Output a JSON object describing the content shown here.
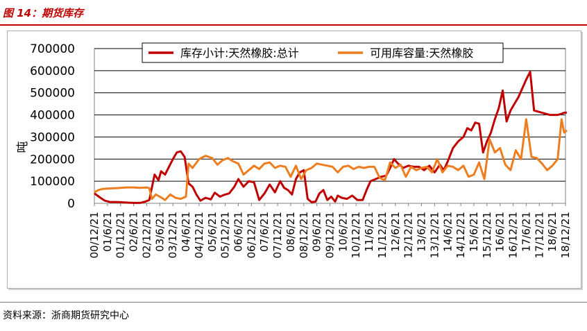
{
  "figure": {
    "title": "图 14：期货库存",
    "source": "资料来源：浙商期货研究中心"
  },
  "colors": {
    "series1": "#c00000",
    "series2": "#ee7d1f",
    "title": "#c00000",
    "grid": "#000000"
  },
  "chart_data": {
    "type": "line",
    "ylabel": "吨",
    "xlabel": "",
    "ylim": [
      0,
      700000
    ],
    "yticks": [
      "0",
      "100000",
      "200000",
      "300000",
      "400000",
      "500000",
      "600000",
      "700000"
    ],
    "xticks": [
      "00/12/21",
      "01/6/21",
      "01/12/21",
      "02/6/21",
      "02/12/21",
      "03/6/21",
      "03/12/21",
      "04/6/21",
      "04/12/21",
      "05/6/21",
      "05/12/21",
      "06/6/21",
      "06/12/21",
      "07/6/21",
      "07/12/21",
      "08/6/21",
      "08/12/21",
      "09/6/21",
      "09/12/21",
      "10/6/21",
      "10/12/21",
      "11/6/21",
      "11/12/21",
      "12/6/21",
      "12/12/21",
      "13/6/21",
      "13/12/21",
      "14/6/21",
      "14/12/21",
      "15/6/21",
      "15/12/21",
      "16/6/21",
      "16/12/21",
      "17/6/21",
      "17/12/21",
      "18/6/21",
      "18/12/21"
    ],
    "grid": "horizontal",
    "legend": "top",
    "series": [
      {
        "name": "库存小计:天然橡胶:总计",
        "x": [
          0,
          0.4,
          0.8,
          1.2,
          1.6,
          2,
          2.5,
          3,
          3.5,
          3.9,
          4.2,
          4.6,
          4.9,
          5.1,
          5.4,
          5.7,
          6,
          6.3,
          6.6,
          6.9,
          7.2,
          7.5,
          7.8,
          8.1,
          8.5,
          8.9,
          9.2,
          9.6,
          9.9,
          10.3,
          10.7,
          11,
          11.4,
          11.8,
          12.2,
          12.6,
          13,
          13.4,
          13.8,
          14.2,
          14.5,
          14.8,
          15.1,
          15.4,
          15.7,
          16,
          16.3,
          16.6,
          16.9,
          17.2,
          17.5,
          17.8,
          18.1,
          18.4,
          18.6,
          18.9,
          19.3,
          19.7,
          20.1,
          20.5,
          20.8,
          21.1,
          21.5,
          21.9,
          22.3,
          22.6,
          22.9,
          23.2,
          23.6,
          24,
          24.4,
          24.8,
          25.2,
          25.6,
          26,
          26.4,
          26.7,
          27,
          27.4,
          27.8,
          28.2,
          28.5,
          28.8,
          29.1,
          29.4,
          29.7,
          30,
          30.3,
          30.6,
          30.9,
          31.2,
          31.5,
          31.8,
          32.1,
          32.4,
          32.7,
          33,
          33.3,
          33.6,
          33.9,
          34.2,
          34.5,
          34.8,
          35.1,
          35.4,
          35.7,
          35.9,
          36,
          36.1
        ],
        "values": [
          45000,
          28000,
          12000,
          6000,
          6000,
          5000,
          3000,
          2000,
          2000,
          8000,
          15000,
          130000,
          105000,
          145000,
          130000,
          165000,
          200000,
          230000,
          235000,
          210000,
          90000,
          75000,
          40000,
          12000,
          25000,
          18000,
          48000,
          30000,
          38000,
          45000,
          75000,
          110000,
          75000,
          100000,
          95000,
          15000,
          45000,
          85000,
          50000,
          100000,
          70000,
          60000,
          40000,
          110000,
          140000,
          150000,
          20000,
          5000,
          8000,
          45000,
          60000,
          15000,
          30000,
          8000,
          35000,
          25000,
          20000,
          35000,
          15000,
          15000,
          60000,
          100000,
          110000,
          120000,
          125000,
          160000,
          200000,
          180000,
          160000,
          170000,
          165000,
          165000,
          150000,
          170000,
          140000,
          175000,
          150000,
          190000,
          250000,
          280000,
          300000,
          340000,
          330000,
          365000,
          360000,
          230000,
          280000,
          320000,
          380000,
          430000,
          510000,
          370000,
          420000,
          450000,
          480000,
          520000,
          560000,
          595000,
          420000,
          415000,
          410000,
          405000,
          400000,
          400000,
          400000,
          405000,
          410000,
          410000,
          410000
        ],
        "color": "#c00000"
      },
      {
        "name": "可用库容量:天然橡胶",
        "x": [
          0,
          0.3,
          0.6,
          1,
          1.5,
          2,
          2.5,
          3,
          3.5,
          4,
          4.2,
          4.4,
          4.7,
          5,
          5.4,
          5.8,
          6.2,
          6.6,
          7,
          7.2,
          7.5,
          8,
          8.5,
          9,
          9.4,
          9.8,
          10.2,
          10.6,
          11,
          11.4,
          11.8,
          12.2,
          12.6,
          13,
          13.4,
          13.8,
          14.2,
          14.6,
          15,
          15.4,
          15.8,
          16.2,
          16.6,
          17,
          17.4,
          17.8,
          18.2,
          18.6,
          19,
          19.4,
          19.8,
          20.2,
          20.6,
          21,
          21.4,
          21.8,
          22.2,
          22.6,
          23,
          23.4,
          23.8,
          24.2,
          24.6,
          25,
          25.4,
          25.8,
          26.2,
          26.6,
          27,
          27.4,
          27.8,
          28.2,
          28.6,
          29,
          29.4,
          29.8,
          30.2,
          30.6,
          31,
          31.4,
          31.8,
          32.2,
          32.6,
          33,
          33.4,
          33.8,
          34.2,
          34.6,
          35,
          35.4,
          35.7,
          35.9,
          36.1
        ],
        "values": [
          50000,
          60000,
          65000,
          67000,
          68000,
          70000,
          72000,
          72000,
          70000,
          72000,
          68000,
          20000,
          40000,
          30000,
          15000,
          40000,
          25000,
          20000,
          30000,
          180000,
          160000,
          200000,
          215000,
          205000,
          175000,
          195000,
          205000,
          190000,
          180000,
          130000,
          150000,
          170000,
          155000,
          180000,
          185000,
          160000,
          170000,
          165000,
          120000,
          170000,
          110000,
          150000,
          160000,
          180000,
          175000,
          170000,
          165000,
          140000,
          165000,
          170000,
          155000,
          165000,
          160000,
          165000,
          165000,
          115000,
          105000,
          185000,
          160000,
          175000,
          120000,
          165000,
          150000,
          160000,
          165000,
          140000,
          200000,
          140000,
          170000,
          165000,
          150000,
          170000,
          120000,
          130000,
          185000,
          110000,
          290000,
          230000,
          250000,
          175000,
          150000,
          240000,
          200000,
          380000,
          210000,
          205000,
          180000,
          150000,
          170000,
          200000,
          380000,
          320000,
          330000
        ],
        "color": "#ee7d1f"
      }
    ]
  }
}
